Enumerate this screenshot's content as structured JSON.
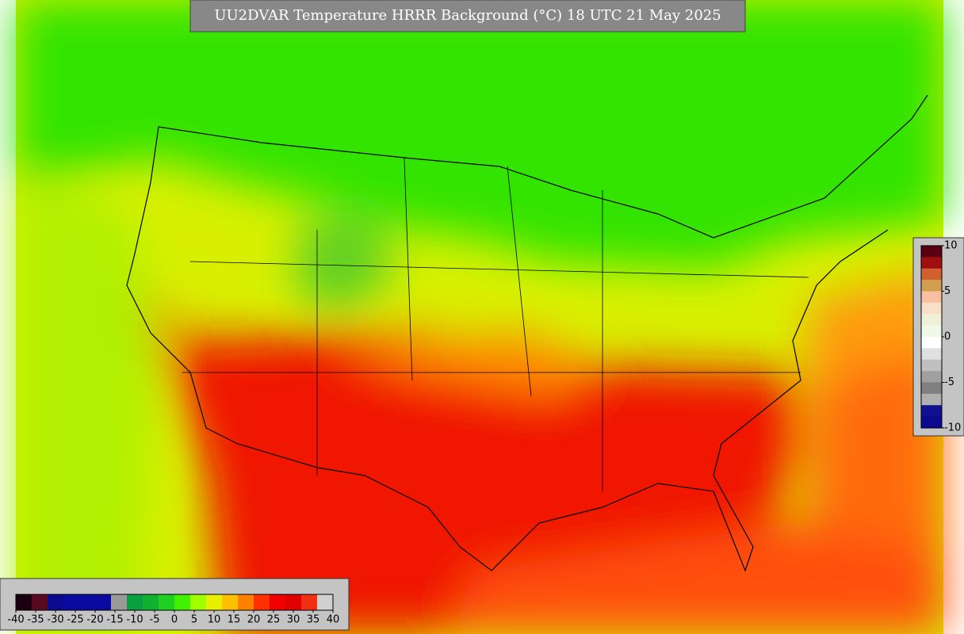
{
  "title": "UU2DVAR Temperature HRRR Background (°C) 18 UTC 21 May 2025",
  "main_colorbar": {
    "range": [
      -40,
      40
    ],
    "ticks": [
      -40,
      -35,
      -30,
      -25,
      -20,
      -15,
      -10,
      -5,
      0,
      5,
      10,
      15,
      20,
      25,
      30,
      35,
      40
    ],
    "colors": [
      "#1a0010",
      "#5a0a20",
      "#0a0a90",
      "#0a0aa0",
      "#0a0aa0",
      "#0a0aa0",
      "#9a9a9a",
      "#08a040",
      "#10b030",
      "#20d020",
      "#40f000",
      "#a0ff00",
      "#e8f000",
      "#ffc000",
      "#ff8000",
      "#ff3000",
      "#f00000",
      "#e00000",
      "#f03010",
      "#d0d0d0"
    ]
  },
  "diff_colorbar": {
    "range": [
      -10,
      10
    ],
    "ticks": [
      10,
      5,
      0,
      -5,
      -10
    ],
    "colors": [
      "#5a0010",
      "#a01010",
      "#d06030",
      "#d0a050",
      "#f8c0a0",
      "#f8e0c8",
      "#f0f0d8",
      "#f0f8e8",
      "#ffffff",
      "#e0e0e0",
      "#c0c0c0",
      "#a0a0a0",
      "#808080",
      "#b0b0b0",
      "#101090",
      "#0a0a90"
    ]
  }
}
